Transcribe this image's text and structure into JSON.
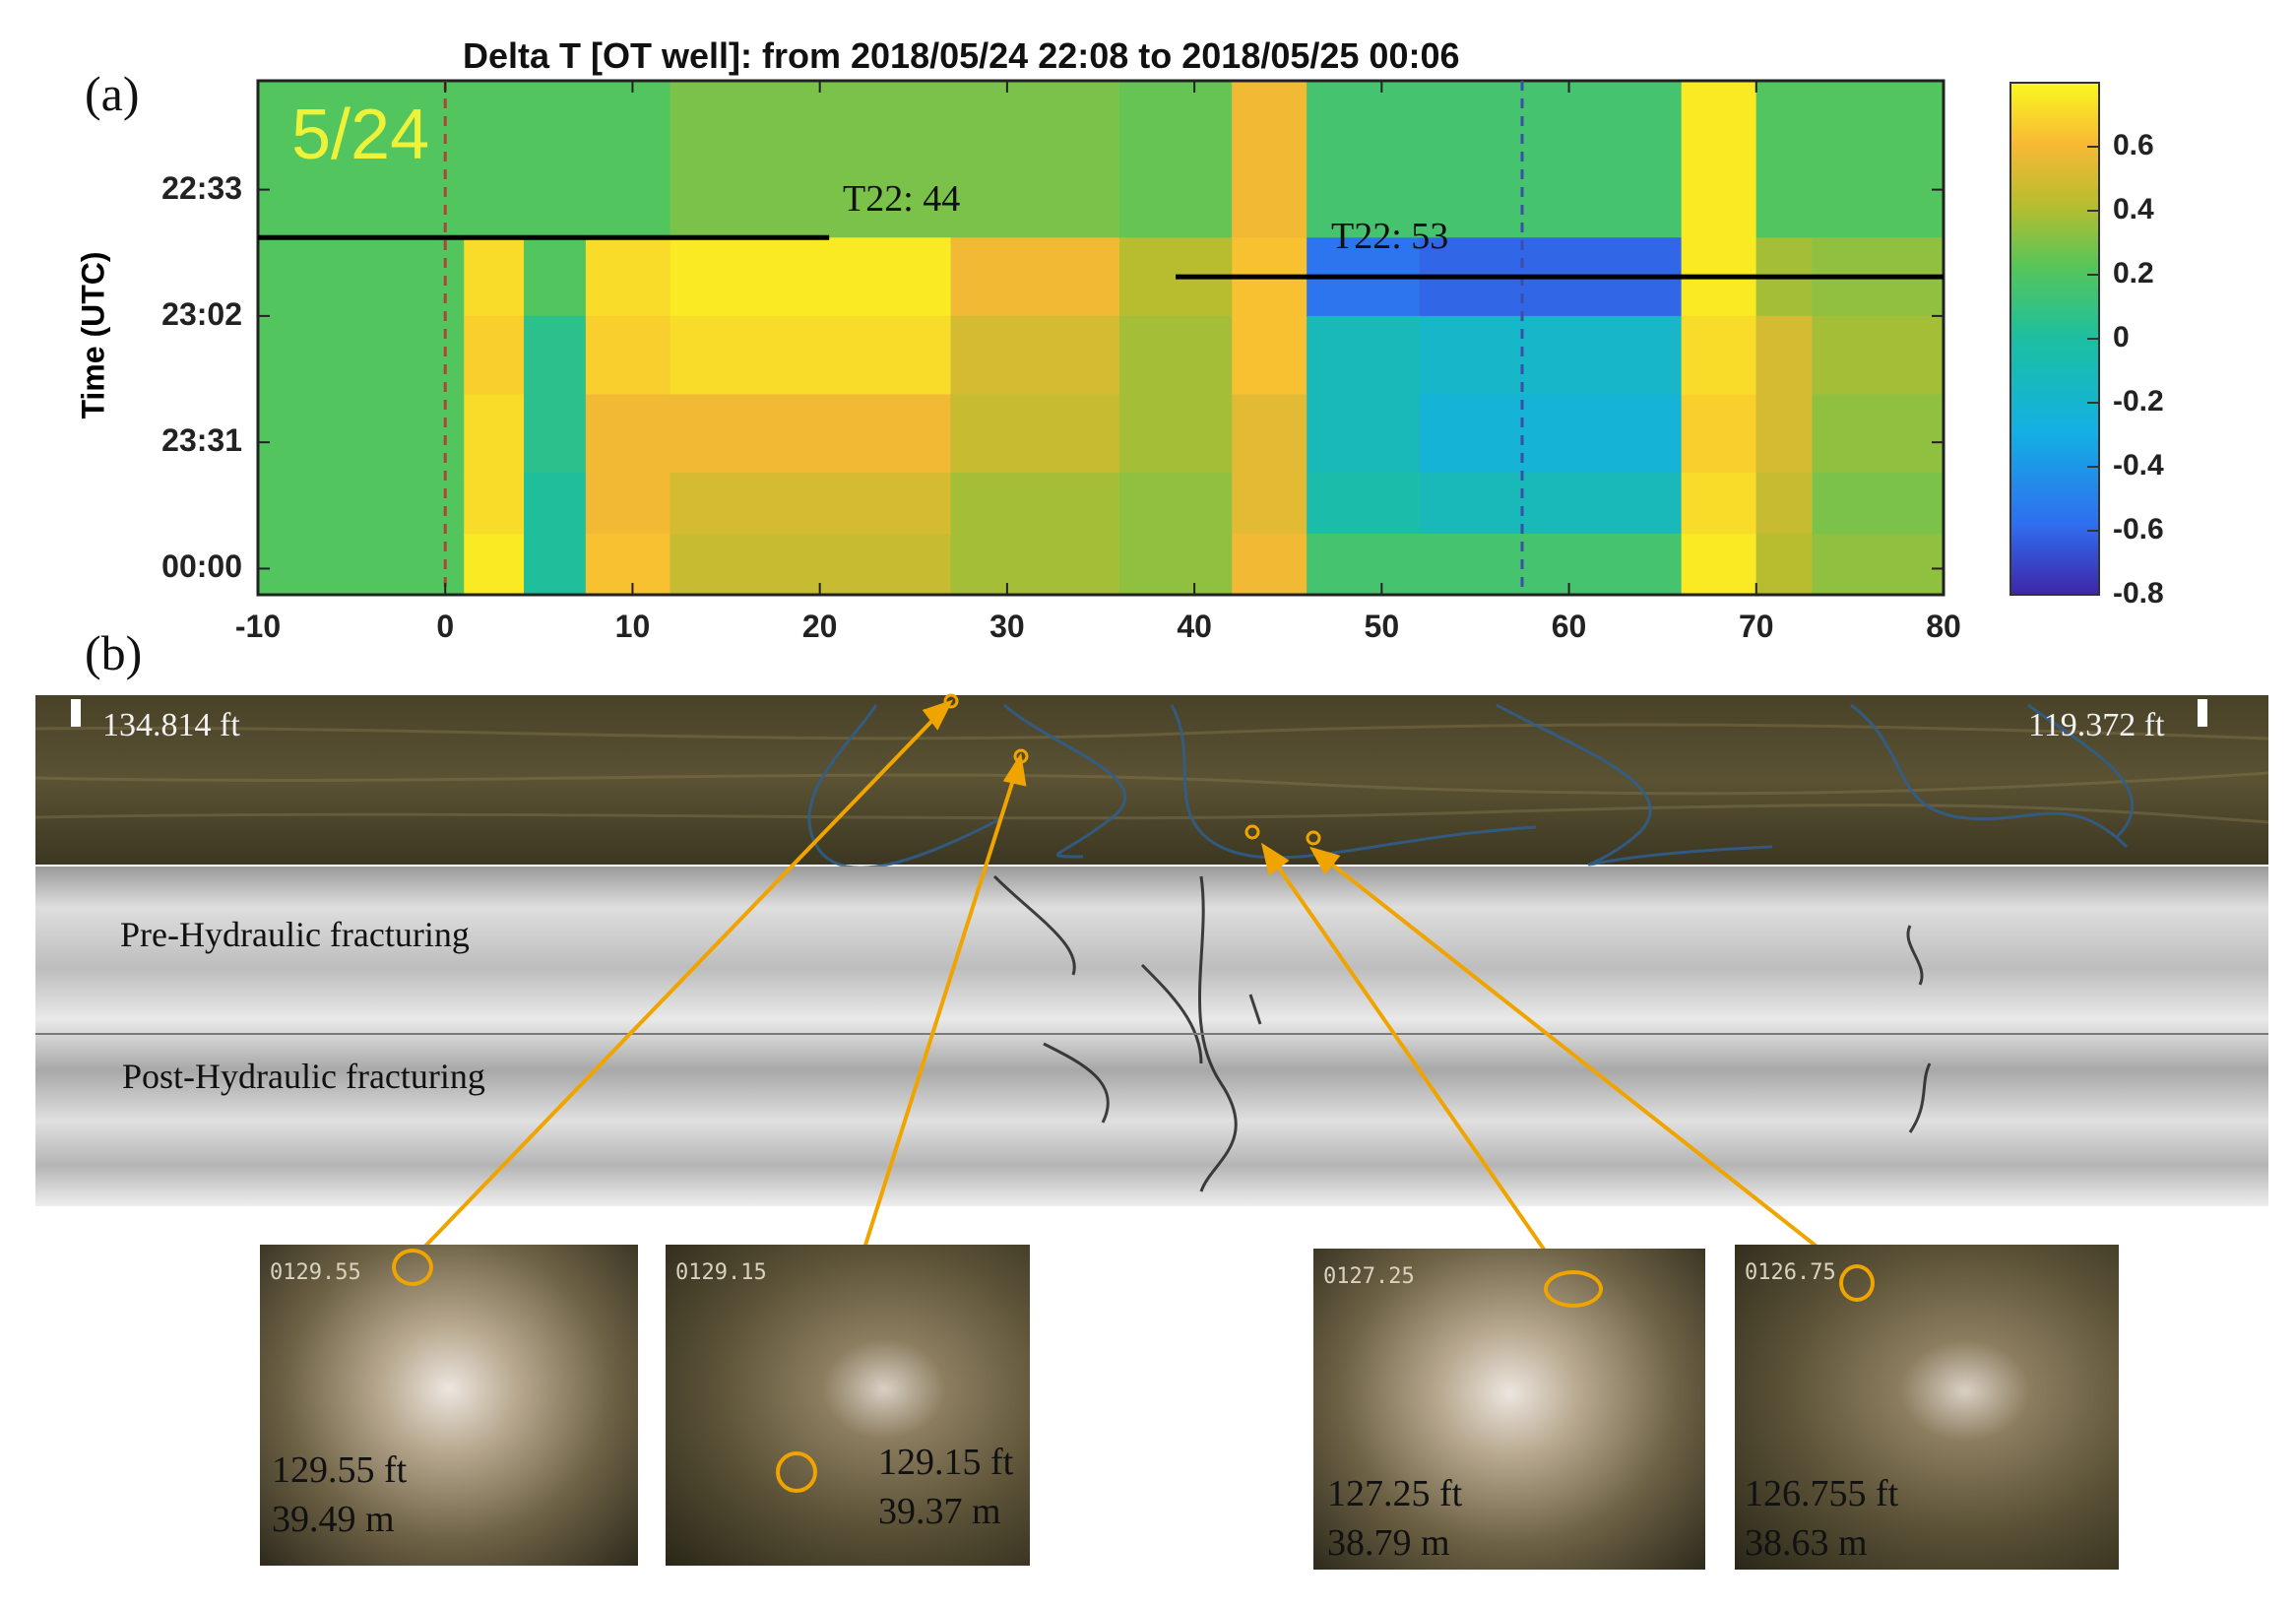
{
  "panel_a_label": "(a)",
  "panel_b_label": "(b)",
  "chart_data": {
    "type": "heatmap",
    "title": "Delta T [OT well]: from 2018/05/24 22:08 to 2018/05/25 00:06",
    "ylabel": "Time (UTC)",
    "xlabel": "",
    "x_ticks": [
      "-10",
      "0",
      "10",
      "20",
      "30",
      "40",
      "50",
      "60",
      "70",
      "80"
    ],
    "xlim": [
      -10,
      80
    ],
    "y_ticks": [
      "22:33",
      "23:02",
      "23:31",
      "00:00"
    ],
    "ylim": [
      "22:08",
      "00:06"
    ],
    "colorbar_ticks": [
      "0.6",
      "0.4",
      "0.2",
      "0",
      "-0.2",
      "-0.4",
      "-0.6",
      "-0.8"
    ],
    "colorbar_range": [
      -0.8,
      0.8
    ],
    "colormap": [
      "#3e26a8",
      "#2f6ff0",
      "#13b0e3",
      "#1cbfa0",
      "#56c55a",
      "#b6bd2f",
      "#f8b935",
      "#f9f81f"
    ],
    "date_label": "5/24",
    "annotations": [
      {
        "text": "T22: 44",
        "x_from": -10,
        "x_to": 20.5,
        "time": "22:44"
      },
      {
        "text": "T22: 53",
        "x_from": 39,
        "x_to": 80,
        "time": "22:53"
      }
    ],
    "dashed_lines_x": [
      0,
      57.5
    ],
    "background_value": 0.1,
    "columns": [
      {
        "x0": -10,
        "x1": 1,
        "values": [
          0.1,
          0.1,
          0.1,
          0.1,
          0.1,
          0.1
        ]
      },
      {
        "x0": 1,
        "x1": 4.2,
        "values": [
          0.1,
          0.7,
          0.65,
          0.7,
          0.7,
          0.75
        ]
      },
      {
        "x0": 4.2,
        "x1": 7.5,
        "values": [
          0.1,
          0.1,
          -0.05,
          -0.05,
          -0.1,
          -0.1
        ]
      },
      {
        "x0": 7.5,
        "x1": 12,
        "values": [
          0.1,
          0.7,
          0.65,
          0.55,
          0.55,
          0.6
        ]
      },
      {
        "x0": 12,
        "x1": 27,
        "values": [
          0.2,
          0.75,
          0.7,
          0.55,
          0.45,
          0.4
        ]
      },
      {
        "x0": 27,
        "x1": 36,
        "values": [
          0.2,
          0.55,
          0.45,
          0.4,
          0.3,
          0.3
        ]
      },
      {
        "x0": 36,
        "x1": 42,
        "values": [
          0.15,
          0.35,
          0.3,
          0.3,
          0.25,
          0.25
        ]
      },
      {
        "x0": 42,
        "x1": 46,
        "values": [
          0.55,
          0.6,
          0.6,
          0.5,
          0.5,
          0.55
        ]
      },
      {
        "x0": 46,
        "x1": 52,
        "values": [
          0.05,
          -0.55,
          -0.2,
          -0.2,
          -0.15,
          0.05
        ]
      },
      {
        "x0": 52,
        "x1": 66,
        "values": [
          0.05,
          -0.6,
          -0.25,
          -0.3,
          -0.2,
          0.05
        ]
      },
      {
        "x0": 66,
        "x1": 70,
        "values": [
          0.75,
          0.75,
          0.7,
          0.65,
          0.7,
          0.75
        ]
      },
      {
        "x0": 70,
        "x1": 73,
        "values": [
          0.1,
          0.3,
          0.45,
          0.45,
          0.4,
          0.35
        ]
      },
      {
        "x0": 73,
        "x1": 80,
        "values": [
          0.1,
          0.25,
          0.3,
          0.25,
          0.2,
          0.25
        ]
      }
    ],
    "row_times": [
      "22:08",
      "22:44",
      "23:02",
      "23:20",
      "23:38",
      "23:52",
      "00:06"
    ]
  },
  "borehole": {
    "depth_left": "134.814 ft",
    "depth_right": "119.372 ft",
    "pre_label": "Pre-Hydraulic fracturing",
    "post_label": "Post-Hydraulic fracturing"
  },
  "photos": [
    {
      "ft": "129.55 ft",
      "m": "39.49 m",
      "stamp": "0129.55"
    },
    {
      "ft": "129.15 ft",
      "m": "39.37 m",
      "stamp": "0129.15"
    },
    {
      "ft": "127.25 ft",
      "m": "38.79 m",
      "stamp": "0127.25"
    },
    {
      "ft": "126.755 ft",
      "m": "38.63 m",
      "stamp": "0126.75"
    }
  ],
  "colors": {
    "accent": "#f0a400",
    "outline": "#111111"
  }
}
